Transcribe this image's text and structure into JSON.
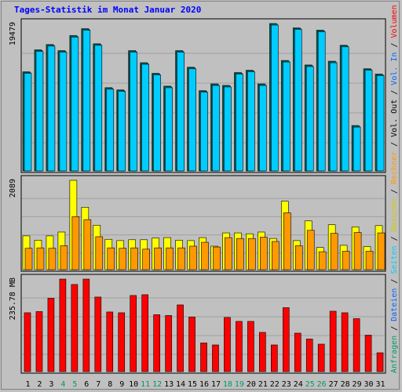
{
  "title": "Tages-Statistik im Monat Januar 2020",
  "colors": {
    "background": "#c0c0c0",
    "panel": "#c0c0c0",
    "grid": "#a0a0a0",
    "anfragen": "#009966",
    "dateien": "#00ccff",
    "seiten": "#00ccff",
    "besuche": "#ffff00",
    "rechner": "#ff9900",
    "volumen": "#ff0000",
    "weekend": "#009966",
    "weekday": "#000000",
    "title": "#0000ff"
  },
  "right_labels": [
    {
      "text": "Anfragen",
      "color": "#009966"
    },
    {
      "text": " / ",
      "color": "#000000"
    },
    {
      "text": "Dateien",
      "color": "#0066ff"
    },
    {
      "text": " / ",
      "color": "#000000"
    },
    {
      "text": "Seiten",
      "color": "#00ccff"
    },
    {
      "text": " / ",
      "color": "#000000"
    },
    {
      "text": "Besuche",
      "color": "#cccc00"
    },
    {
      "text": " / ",
      "color": "#000000"
    },
    {
      "text": "Rechner",
      "color": "#ff9900"
    },
    {
      "text": " / ",
      "color": "#000000"
    },
    {
      "text": "Vol. Out",
      "color": "#000000"
    },
    {
      "text": " / ",
      "color": "#000000"
    },
    {
      "text": "Vol. In",
      "color": "#0066ff"
    },
    {
      "text": " / ",
      "color": "#000000"
    },
    {
      "text": "Volumen",
      "color": "#ff0000"
    }
  ],
  "chart_data": [
    {
      "type": "bar",
      "name_panel": "requests",
      "ytick": "19479",
      "ylim": [
        0,
        19479
      ],
      "categories": [
        "1",
        "2",
        "3",
        "4",
        "5",
        "6",
        "7",
        "8",
        "9",
        "10",
        "11",
        "12",
        "13",
        "14",
        "15",
        "16",
        "17",
        "18",
        "19",
        "20",
        "21",
        "22",
        "23",
        "24",
        "25",
        "26",
        "27",
        "28",
        "29",
        "30",
        "31"
      ],
      "weekend_days": [
        "4",
        "5",
        "11",
        "12",
        "18",
        "19",
        "25",
        "26"
      ],
      "series": [
        {
          "key": "anfragen",
          "values": [
            13100,
            16000,
            16700,
            15900,
            17900,
            18800,
            16800,
            11000,
            10700,
            15900,
            14300,
            12900,
            11200,
            15900,
            13700,
            10600,
            11500,
            11300,
            13000,
            13300,
            11500,
            19479,
            14600,
            18900,
            14000,
            18600,
            14500,
            16600,
            6000,
            13500,
            12800
          ]
        },
        {
          "key": "dateien",
          "values": [
            13100,
            16000,
            16700,
            15900,
            17900,
            18800,
            16800,
            11000,
            10700,
            15900,
            14300,
            12900,
            11200,
            15900,
            13700,
            10600,
            11500,
            11300,
            13000,
            13300,
            11500,
            19479,
            14600,
            18900,
            14000,
            18600,
            14500,
            16600,
            6000,
            13500,
            12800
          ]
        },
        {
          "key": "seiten",
          "values": [
            13100,
            16000,
            16700,
            15900,
            17900,
            18800,
            16800,
            11000,
            10700,
            15900,
            14300,
            12900,
            11200,
            15900,
            13700,
            10600,
            11500,
            11300,
            13000,
            13300,
            11500,
            19479,
            14600,
            18900,
            14000,
            18600,
            14500,
            16600,
            6000,
            13500,
            12800
          ]
        }
      ]
    },
    {
      "type": "bar",
      "name_panel": "visits",
      "ytick": "2089",
      "ylim": [
        0,
        2089
      ],
      "categories": [
        "1",
        "2",
        "3",
        "4",
        "5",
        "6",
        "7",
        "8",
        "9",
        "10",
        "11",
        "12",
        "13",
        "14",
        "15",
        "16",
        "17",
        "18",
        "19",
        "20",
        "21",
        "22",
        "23",
        "24",
        "25",
        "26",
        "27",
        "28",
        "29",
        "30",
        "31"
      ],
      "series": [
        {
          "key": "besuche",
          "values": [
            790,
            690,
            790,
            880,
            2089,
            1460,
            1040,
            710,
            680,
            700,
            700,
            740,
            750,
            690,
            680,
            750,
            550,
            860,
            860,
            840,
            880,
            730,
            1600,
            680,
            1140,
            520,
            1050,
            570,
            1000,
            540,
            1030
          ]
        },
        {
          "key": "rechner",
          "values": [
            500,
            510,
            500,
            560,
            1240,
            1170,
            770,
            510,
            500,
            510,
            480,
            510,
            510,
            510,
            550,
            640,
            530,
            750,
            730,
            730,
            760,
            660,
            1330,
            560,
            920,
            420,
            850,
            430,
            870,
            430,
            860
          ]
        }
      ]
    },
    {
      "type": "bar",
      "name_panel": "volume",
      "ytick": "235.78 MB",
      "ylim": [
        0,
        235.78
      ],
      "categories": [
        "1",
        "2",
        "3",
        "4",
        "5",
        "6",
        "7",
        "8",
        "9",
        "10",
        "11",
        "12",
        "13",
        "14",
        "15",
        "16",
        "17",
        "18",
        "19",
        "20",
        "21",
        "22",
        "23",
        "24",
        "25",
        "26",
        "27",
        "28",
        "29",
        "30",
        "31"
      ],
      "series": [
        {
          "key": "volumen",
          "values": [
            150,
            153,
            187,
            235.78,
            222,
            235.78,
            190,
            152,
            150,
            194,
            196,
            145,
            143,
            170,
            139,
            73,
            68,
            138,
            128,
            128,
            100,
            68,
            163,
            98,
            83,
            70,
            154,
            150,
            135,
            93,
            48
          ]
        }
      ]
    }
  ]
}
